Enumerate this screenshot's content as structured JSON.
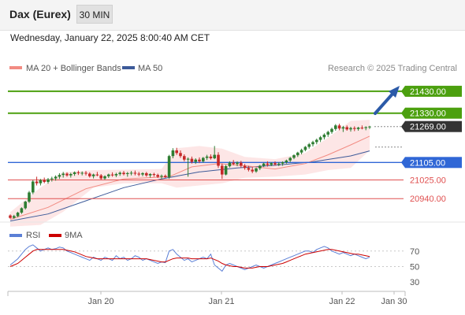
{
  "header": {
    "title": "Dax (Eurex)",
    "timeframe": "30 MIN"
  },
  "datetime": "Wednesday, January 22, 2025 8:00:40 AM CET",
  "legend": {
    "ma20": "MA 20 + Bollinger Bands",
    "ma50": "MA 50",
    "credit": "Research © 2025 Trading Central"
  },
  "rsi_legend": {
    "rsi": "RSI",
    "ma9": "9MA"
  },
  "colors": {
    "candle_up": "#2e7d32",
    "candle_down": "#c62828",
    "resistance": "#4ca00f",
    "support": "#3067d6",
    "support_red": "#e05050",
    "ma20": "#f28b82",
    "ma50": "#3d5a99",
    "band_fill": "#fde2e2",
    "arrow": "#2b5aa8",
    "rsi_line": "#5b7fd6",
    "rsi_ma": "#cc0000"
  },
  "chart_data": {
    "type": "candlestick",
    "ylim": [
      20840,
      21480
    ],
    "x_ticks": [
      "Jan 20",
      "Jan 21",
      "Jan 22",
      "Jan 30"
    ],
    "levels": [
      {
        "value": 21430,
        "label": "21430.00",
        "kind": "resistance"
      },
      {
        "value": 21330,
        "label": "21330.00",
        "kind": "resistance"
      },
      {
        "value": 21269,
        "label": "21269.00",
        "kind": "last"
      },
      {
        "value": 21105,
        "label": "21105.00",
        "kind": "support"
      },
      {
        "value": 21025,
        "label": "21025.00",
        "kind": "support_red"
      },
      {
        "value": 20940,
        "label": "20940.00",
        "kind": "support_red"
      }
    ],
    "ohlc": [
      [
        20863,
        20868,
        20848,
        20852
      ],
      [
        20852,
        20866,
        20848,
        20860
      ],
      [
        20860,
        20880,
        20855,
        20876
      ],
      [
        20876,
        20900,
        20870,
        20896
      ],
      [
        20896,
        20930,
        20890,
        20926
      ],
      [
        20926,
        20975,
        20920,
        20968
      ],
      [
        20968,
        21025,
        20960,
        21018
      ],
      [
        21018,
        21040,
        21000,
        21010
      ],
      [
        21010,
        21030,
        21000,
        21024
      ],
      [
        21024,
        21036,
        21010,
        21016
      ],
      [
        21016,
        21034,
        21008,
        21028
      ],
      [
        21028,
        21040,
        21018,
        21032
      ],
      [
        21032,
        21046,
        21022,
        21040
      ],
      [
        21040,
        21056,
        21030,
        21048
      ],
      [
        21048,
        21062,
        21036,
        21054
      ],
      [
        21054,
        21060,
        21040,
        21046
      ],
      [
        21046,
        21058,
        21036,
        21052
      ],
      [
        21052,
        21064,
        21044,
        21060
      ],
      [
        21060,
        21068,
        21048,
        21056
      ],
      [
        21056,
        21064,
        21046,
        21058
      ],
      [
        21058,
        21066,
        21046,
        21054
      ],
      [
        21054,
        21060,
        21036,
        21042
      ],
      [
        21042,
        21054,
        21032,
        21050
      ],
      [
        21050,
        21062,
        21042,
        21046
      ],
      [
        21046,
        21052,
        21026,
        21032
      ],
      [
        21032,
        21046,
        21026,
        21042
      ],
      [
        21042,
        21054,
        21034,
        21050
      ],
      [
        21050,
        21060,
        21040,
        21046
      ],
      [
        21046,
        21058,
        21038,
        21052
      ],
      [
        21052,
        21064,
        21044,
        21058
      ],
      [
        21058,
        21066,
        21046,
        21052
      ],
      [
        21052,
        21062,
        21040,
        21056
      ],
      [
        21056,
        21066,
        21046,
        21058
      ],
      [
        21058,
        21068,
        21046,
        21054
      ],
      [
        21054,
        21062,
        21042,
        21050
      ],
      [
        21050,
        21060,
        21042,
        21056
      ],
      [
        21056,
        21062,
        21040,
        21046
      ],
      [
        21046,
        21056,
        21036,
        21052
      ],
      [
        21052,
        21058,
        21040,
        21048
      ],
      [
        21048,
        21054,
        21034,
        21040
      ],
      [
        21040,
        21050,
        21030,
        21044
      ],
      [
        21044,
        21050,
        21034,
        21038
      ],
      [
        21038,
        21140,
        21030,
        21134
      ],
      [
        21134,
        21170,
        21124,
        21160
      ],
      [
        21160,
        21172,
        21140,
        21148
      ],
      [
        21148,
        21160,
        21126,
        21134
      ],
      [
        21134,
        21142,
        21110,
        21118
      ],
      [
        21118,
        21128,
        21040,
        21122
      ],
      [
        21122,
        21132,
        21100,
        21108
      ],
      [
        21108,
        21124,
        21098,
        21118
      ],
      [
        21118,
        21128,
        21102,
        21110
      ],
      [
        21110,
        21130,
        21104,
        21126
      ],
      [
        21126,
        21140,
        21116,
        21132
      ],
      [
        21132,
        21142,
        21118,
        21124
      ],
      [
        21124,
        21180,
        21120,
        21140
      ],
      [
        21140,
        21152,
        21080,
        21090
      ],
      [
        21090,
        21100,
        21030,
        21050
      ],
      [
        21050,
        21094,
        21046,
        21088
      ],
      [
        21088,
        21110,
        21082,
        21104
      ],
      [
        21104,
        21116,
        21092,
        21098
      ],
      [
        21098,
        21110,
        21088,
        21104
      ],
      [
        21104,
        21112,
        21082,
        21090
      ],
      [
        21090,
        21098,
        21072,
        21080
      ],
      [
        21080,
        21090,
        21064,
        21072
      ],
      [
        21072,
        21084,
        21056,
        21064
      ],
      [
        21064,
        21082,
        21058,
        21078
      ],
      [
        21078,
        21094,
        21070,
        21090
      ],
      [
        21090,
        21104,
        21084,
        21100
      ],
      [
        21100,
        21110,
        21086,
        21094
      ],
      [
        21094,
        21106,
        21088,
        21102
      ],
      [
        21102,
        21110,
        21090,
        21096
      ],
      [
        21096,
        21106,
        21088,
        21100
      ],
      [
        21100,
        21110,
        21090,
        21106
      ],
      [
        21106,
        21118,
        21100,
        21114
      ],
      [
        21114,
        21130,
        21106,
        21126
      ],
      [
        21126,
        21142,
        21120,
        21138
      ],
      [
        21138,
        21154,
        21130,
        21150
      ],
      [
        21150,
        21168,
        21142,
        21162
      ],
      [
        21162,
        21180,
        21156,
        21176
      ],
      [
        21176,
        21194,
        21168,
        21188
      ],
      [
        21188,
        21204,
        21178,
        21198
      ],
      [
        21198,
        21214,
        21188,
        21208
      ],
      [
        21208,
        21226,
        21198,
        21220
      ],
      [
        21220,
        21238,
        21210,
        21232
      ],
      [
        21232,
        21250,
        21222,
        21244
      ],
      [
        21244,
        21264,
        21236,
        21258
      ],
      [
        21258,
        21280,
        21250,
        21274
      ],
      [
        21274,
        21282,
        21252,
        21260
      ],
      [
        21260,
        21272,
        21244,
        21266
      ],
      [
        21266,
        21274,
        21250,
        21256
      ],
      [
        21256,
        21268,
        21246,
        21262
      ],
      [
        21262,
        21270,
        21248,
        21258
      ],
      [
        21258,
        21268,
        21250,
        21264
      ],
      [
        21264,
        21274,
        21256,
        21262
      ],
      [
        21262,
        21270,
        21252,
        21266
      ],
      [
        21266,
        21272,
        21258,
        21269
      ]
    ],
    "ma20": [
      [
        0,
        20845
      ],
      [
        10,
        20900
      ],
      [
        20,
        20985
      ],
      [
        30,
        21030
      ],
      [
        42,
        21040
      ],
      [
        48,
        21085
      ],
      [
        55,
        21100
      ],
      [
        62,
        21090
      ],
      [
        70,
        21075
      ],
      [
        78,
        21100
      ],
      [
        84,
        21140
      ],
      [
        90,
        21185
      ],
      [
        95,
        21225
      ]
    ],
    "ma50": [
      [
        0,
        20838
      ],
      [
        10,
        20870
      ],
      [
        20,
        20930
      ],
      [
        30,
        20990
      ],
      [
        40,
        21030
      ],
      [
        50,
        21062
      ],
      [
        60,
        21080
      ],
      [
        70,
        21092
      ],
      [
        80,
        21108
      ],
      [
        90,
        21135
      ],
      [
        95,
        21158
      ]
    ],
    "bollinger_upper": [
      [
        0,
        20878
      ],
      [
        8,
        20990
      ],
      [
        14,
        21060
      ],
      [
        22,
        21070
      ],
      [
        30,
        21072
      ],
      [
        40,
        21075
      ],
      [
        44,
        21170
      ],
      [
        50,
        21180
      ],
      [
        56,
        21168
      ],
      [
        62,
        21130
      ],
      [
        70,
        21120
      ],
      [
        78,
        21148
      ],
      [
        84,
        21218
      ],
      [
        90,
        21295
      ],
      [
        95,
        21300
      ]
    ],
    "bollinger_lower": [
      [
        0,
        20812
      ],
      [
        8,
        20820
      ],
      [
        14,
        20880
      ],
      [
        22,
        20990
      ],
      [
        30,
        21010
      ],
      [
        40,
        21010
      ],
      [
        44,
        20990
      ],
      [
        50,
        21000
      ],
      [
        56,
        21010
      ],
      [
        62,
        21035
      ],
      [
        70,
        21040
      ],
      [
        78,
        21050
      ],
      [
        84,
        21070
      ],
      [
        90,
        21080
      ],
      [
        95,
        21160
      ]
    ],
    "rsi": {
      "ylim": [
        20,
        85
      ],
      "ticks": [
        70,
        50,
        30
      ],
      "values": [
        52,
        56,
        60,
        66,
        72,
        76,
        78,
        74,
        70,
        72,
        74,
        72,
        73,
        75,
        74,
        70,
        68,
        66,
        64,
        62,
        60,
        58,
        62,
        60,
        58,
        62,
        60,
        58,
        64,
        60,
        62,
        58,
        60,
        64,
        62,
        58,
        60,
        58,
        56,
        54,
        56,
        55,
        70,
        72,
        66,
        62,
        58,
        60,
        56,
        58,
        60,
        62,
        60,
        66,
        52,
        48,
        44,
        52,
        54,
        52,
        50,
        48,
        46,
        48,
        50,
        52,
        50,
        48,
        50,
        52,
        54,
        56,
        58,
        60,
        62,
        64,
        66,
        68,
        70,
        70,
        68,
        72,
        74,
        76,
        74,
        70,
        68,
        66,
        68,
        66,
        64,
        66,
        64,
        62,
        60,
        62
      ],
      "ma": [
        50,
        52,
        54,
        58,
        62,
        66,
        70,
        72,
        72,
        72,
        72,
        72,
        72,
        72,
        72,
        71,
        70,
        69,
        67,
        65,
        63,
        62,
        61,
        60,
        60,
        60,
        60,
        60,
        60,
        60,
        60,
        60,
        60,
        60,
        60,
        60,
        60,
        59,
        58,
        57,
        56,
        56,
        58,
        60,
        61,
        61,
        61,
        61,
        60,
        60,
        60,
        60,
        60,
        61,
        59,
        57,
        54,
        52,
        51,
        50,
        50,
        49,
        48,
        48,
        48,
        49,
        50,
        50,
        50,
        51,
        52,
        53,
        54,
        56,
        58,
        60,
        62,
        64,
        66,
        67,
        68,
        69,
        70,
        71,
        72,
        72,
        71,
        70,
        69,
        68,
        67,
        66,
        66,
        65,
        64,
        63
      ]
    }
  }
}
